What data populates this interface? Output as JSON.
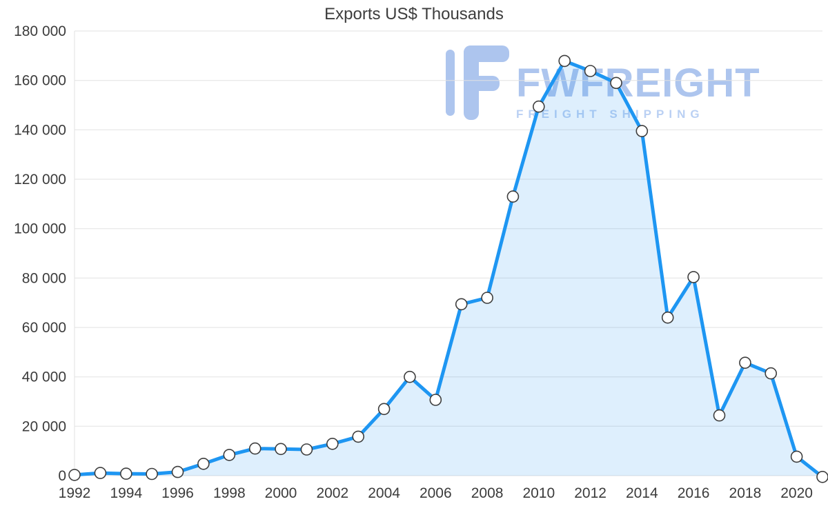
{
  "chart_data": {
    "type": "line",
    "title": "Exports US$ Thousands",
    "x": [
      1992,
      1993,
      1994,
      1995,
      1996,
      1997,
      1998,
      1999,
      2000,
      2001,
      2002,
      2003,
      2004,
      2005,
      2006,
      2007,
      2008,
      2009,
      2010,
      2011,
      2012,
      2013,
      2014,
      2015,
      2016,
      2017,
      2018,
      2019,
      2020,
      2021
    ],
    "series": [
      {
        "name": "Exports US$ Thousands",
        "values": [
          300,
          1100,
          800,
          700,
          1500,
          4800,
          8400,
          11000,
          10800,
          10600,
          12900,
          15800,
          27000,
          40000,
          30700,
          69400,
          72000,
          113000,
          149400,
          167900,
          163800,
          159000,
          139500,
          64000,
          80400,
          24400,
          45700,
          41400,
          7700,
          -500
        ]
      }
    ],
    "ylim": [
      0,
      180000
    ],
    "yticks": [
      0,
      20000,
      40000,
      60000,
      80000,
      100000,
      120000,
      140000,
      160000,
      180000
    ],
    "ytick_labels": [
      "0",
      "20 000",
      "40 000",
      "60 000",
      "80 000",
      "100 000",
      "120 000",
      "140 000",
      "160 000",
      "180 000"
    ],
    "xticks": [
      1992,
      1994,
      1996,
      1998,
      2000,
      2002,
      2004,
      2006,
      2008,
      2010,
      2012,
      2014,
      2016,
      2018,
      2020
    ],
    "xtick_labels": [
      "1992",
      "1994",
      "1996",
      "1998",
      "2000",
      "2002",
      "2004",
      "2006",
      "2008",
      "2010",
      "2012",
      "2014",
      "2016",
      "2018",
      "2020"
    ],
    "grid": "horizontal",
    "legend": "none",
    "colors": {
      "line": "#1e96f2",
      "fill": "rgba(33,150,243,0.15)",
      "grid": "#e2e2e2",
      "tick_text": "#3b3b3b",
      "title_text": "#3d3d3d",
      "marker_fill": "#ffffff",
      "marker_stroke": "#3d3d3d"
    }
  },
  "watermark": {
    "brand": "FWFREIGHT",
    "tagline": "FREIGHT SHIPPING",
    "color": "#a9c2ee",
    "tagline_color": "#b7cef3"
  }
}
